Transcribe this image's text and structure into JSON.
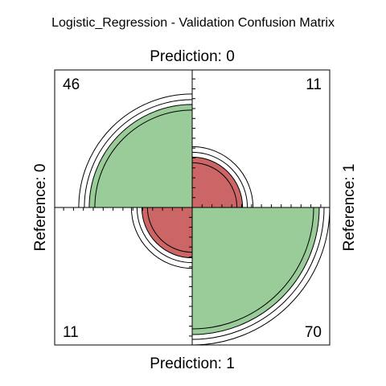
{
  "chart_data": {
    "type": "fourfold",
    "title": "Logistic_Regression - Validation Confusion Matrix",
    "top_label": "Prediction: 0",
    "bottom_label": "Prediction: 1",
    "left_label": "Reference: 0",
    "right_label": "Reference: 1",
    "cells": [
      {
        "position": "top-left",
        "prediction": "0",
        "reference": "0",
        "count": 46,
        "color": "#99cc99"
      },
      {
        "position": "top-right",
        "prediction": "0",
        "reference": "1",
        "count": 11,
        "color": "#cc6666"
      },
      {
        "position": "bottom-left",
        "prediction": "1",
        "reference": "0",
        "count": 11,
        "color": "#cc6666"
      },
      {
        "position": "bottom-right",
        "prediction": "1",
        "reference": "1",
        "count": 70,
        "color": "#99cc99"
      }
    ]
  }
}
